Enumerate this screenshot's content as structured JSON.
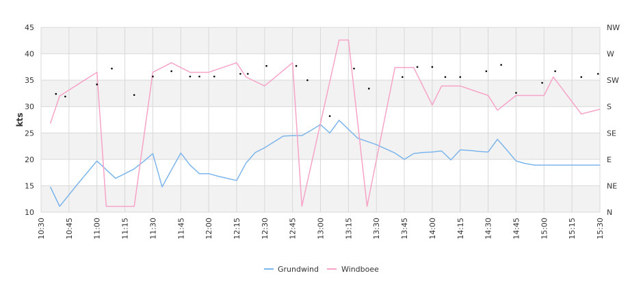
{
  "chart_data": {
    "type": "line",
    "ylabel": "kts",
    "xlabel": "",
    "ylim": [
      10,
      45
    ],
    "yticks": [
      10,
      15,
      20,
      25,
      30,
      35,
      40,
      45
    ],
    "xticks": [
      "10:30",
      "10:45",
      "11:00",
      "11:15",
      "11:30",
      "11:45",
      "12:00",
      "12:15",
      "12:30",
      "12:45",
      "13:00",
      "13:15",
      "13:30",
      "13:45",
      "14:00",
      "14:15",
      "14:30",
      "14:45",
      "15:00",
      "15:15",
      "15:30"
    ],
    "right_axis_labels": [
      "N",
      "NE",
      "E",
      "SE",
      "S",
      "SW",
      "W",
      "NW",
      "N"
    ],
    "grid": true,
    "band_colors": [
      "#f2f2f2",
      "#ffffff"
    ],
    "legend": "bottom-center",
    "series": [
      {
        "name": "Grundwind",
        "color": "#7cb5ec",
        "x": [
          "10:35",
          "10:40",
          "10:50",
          "10:55",
          "11:00",
          "11:10",
          "11:15",
          "11:20",
          "11:25",
          "11:30",
          "11:35",
          "11:40",
          "11:45",
          "11:50",
          "11:55",
          "12:00",
          "12:05",
          "12:10",
          "12:15",
          "12:20",
          "12:25",
          "12:30",
          "12:35",
          "12:40",
          "12:45",
          "12:50",
          "12:55",
          "13:00",
          "13:05",
          "13:10",
          "13:15",
          "13:20",
          "13:25",
          "13:30",
          "13:35",
          "13:40",
          "13:45",
          "13:50",
          "13:55",
          "14:00",
          "14:05",
          "14:10",
          "14:15",
          "14:20",
          "14:25",
          "14:30",
          "14:35",
          "14:40",
          "14:45",
          "14:50",
          "14:55",
          "15:00",
          "15:05",
          "15:10",
          "15:15",
          "15:20",
          "15:25",
          "15:30"
        ],
        "y": [
          14.8,
          11.1,
          15.5,
          17.6,
          19.7,
          16.4,
          17.3,
          18.2,
          19.6,
          21.1,
          14.8,
          18.0,
          21.2,
          18.9,
          17.3,
          17.3,
          16.8,
          16.4,
          16.0,
          19.3,
          21.3,
          22.2,
          23.3,
          24.4,
          24.5,
          24.5,
          25.5,
          26.6,
          25.0,
          27.4,
          25.7,
          24.0,
          23.4,
          22.8,
          22.0,
          21.2,
          20.0,
          21.1,
          21.3,
          21.4,
          21.6,
          19.9,
          21.8,
          21.7,
          21.5,
          21.4,
          23.8,
          21.8,
          19.7,
          19.2,
          18.9,
          18.9,
          18.9,
          18.9,
          18.9,
          18.9,
          18.9,
          18.9
        ]
      },
      {
        "name": "Windboee",
        "color": "#f7a3c8",
        "x": [
          "10:35",
          "10:40",
          "11:00",
          "11:05",
          "11:15",
          "11:20",
          "11:30",
          "11:40",
          "11:50",
          "12:00",
          "12:15",
          "12:20",
          "12:30",
          "12:45",
          "12:50",
          "13:10",
          "13:15",
          "13:25",
          "13:40",
          "13:50",
          "14:00",
          "14:05",
          "14:15",
          "14:30",
          "14:35",
          "14:45",
          "15:00",
          "15:05",
          "15:20",
          "15:30"
        ],
        "y": [
          26.8,
          32.0,
          36.5,
          11.1,
          11.1,
          11.1,
          36.5,
          38.3,
          36.5,
          36.5,
          38.3,
          35.6,
          33.9,
          38.3,
          11.1,
          42.6,
          42.6,
          11.1,
          37.4,
          37.4,
          30.3,
          33.9,
          33.9,
          32.1,
          29.3,
          32.1,
          32.1,
          35.6,
          28.6,
          29.5
        ]
      }
    ],
    "direction_points": {
      "x": [
        "10:38",
        "10:43",
        "11:00",
        "11:08",
        "11:20",
        "11:30",
        "11:40",
        "11:50",
        "11:55",
        "12:03",
        "12:17",
        "12:21",
        "12:31",
        "12:47",
        "12:53",
        "13:05",
        "13:18",
        "13:26",
        "13:44",
        "13:52",
        "14:00",
        "14:07",
        "14:15",
        "14:29",
        "14:37",
        "14:45",
        "14:59",
        "15:06",
        "15:20",
        "15:29"
      ],
      "y": [
        32.4,
        31.9,
        34.2,
        37.2,
        32.2,
        35.7,
        36.7,
        35.7,
        35.7,
        35.7,
        36.2,
        36.2,
        37.7,
        37.7,
        35.0,
        28.2,
        37.2,
        33.4,
        35.6,
        37.5,
        37.5,
        35.6,
        35.6,
        36.7,
        37.9,
        32.6,
        34.5,
        36.7,
        35.6,
        36.2
      ]
    }
  },
  "legend": {
    "items": [
      {
        "label": "Grundwind",
        "color": "#7cb5ec"
      },
      {
        "label": "Windboee",
        "color": "#f7a3c8"
      }
    ]
  }
}
